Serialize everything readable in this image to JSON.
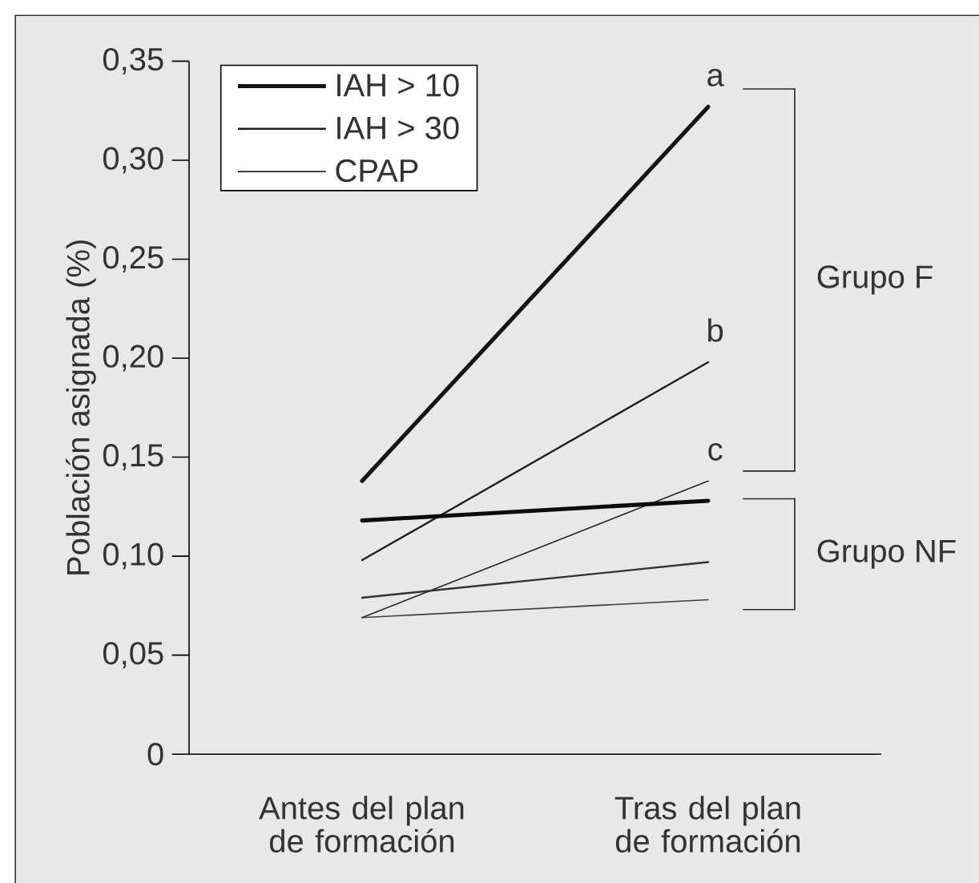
{
  "chart_data": {
    "type": "line",
    "ylabel": "Población asignada (%)",
    "categories": [
      "Antes del plan de formación",
      "Tras del plan de formación"
    ],
    "series": [
      {
        "name": "IAH > 10",
        "color": "#141414",
        "values": [
          0.138,
          0.327
        ]
      },
      {
        "name": "IAH > 30",
        "color": "#1e1e1e",
        "values": [
          0.098,
          0.198
        ]
      },
      {
        "name": "CPAP",
        "color": "#282828",
        "values": [
          0.069,
          0.138
        ]
      },
      {
        "color": "#0a0a0a",
        "values": [
          0.118,
          0.128
        ]
      },
      {
        "color": "#323232",
        "values": [
          0.079,
          0.097
        ]
      },
      {
        "color": "#3c3c3c",
        "values": [
          0.069,
          0.078
        ]
      }
    ],
    "ylim": [
      0,
      0.35
    ],
    "yticks": [
      0,
      {
        "value": 0.05,
        "label": "0,05"
      },
      {
        "value": 0.1,
        "label": "0,10"
      },
      {
        "value": 0.15,
        "label": "0,15"
      },
      {
        "value": 0.2,
        "label": "0,20"
      },
      {
        "value": 0.25,
        "label": "0,25"
      },
      {
        "value": 0.3,
        "label": "0,30"
      },
      {
        "value": 0.35,
        "label": "0,35"
      }
    ],
    "annotations": [
      {
        "text": "a",
        "x": "Tras del plan de formación",
        "y": 0.327
      },
      {
        "text": "b",
        "x": "Tras del plan de formación",
        "y": 0.198
      },
      {
        "text": "c",
        "x": "Tras del plan de formación",
        "y": 0.138
      },
      "Grupo F",
      "Grupo NF"
    ],
    "legend": "top left",
    "grid": false,
    "marker": "none",
    "line_style": "solid"
  }
}
